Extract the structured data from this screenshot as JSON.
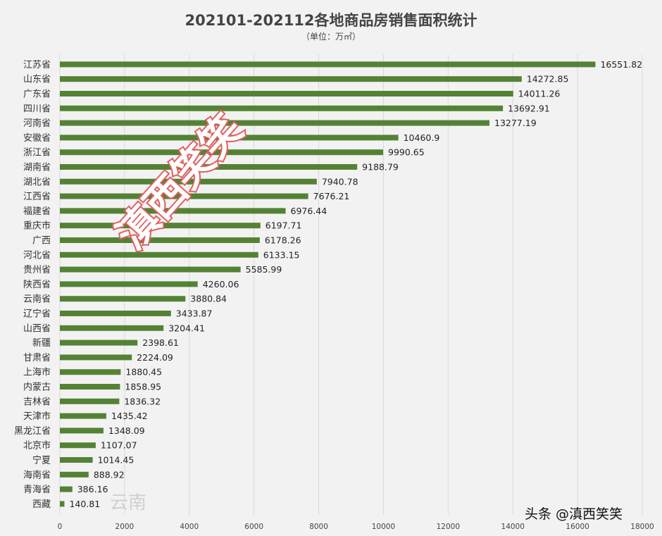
{
  "chart_data": {
    "type": "bar",
    "orientation": "horizontal",
    "title": "202101-202112各地商品房销售面积统计",
    "subtitle": "（单位：万㎡）",
    "categories": [
      "江苏省",
      "山东省",
      "广东省",
      "四川省",
      "河南省",
      "安徽省",
      "浙江省",
      "湖南省",
      "湖北省",
      "江西省",
      "福建省",
      "重庆市",
      "广西",
      "河北省",
      "贵州省",
      "陕西省",
      "云南省",
      "辽宁省",
      "山西省",
      "新疆",
      "甘肃省",
      "上海市",
      "内蒙古",
      "吉林省",
      "天津市",
      "黑龙江省",
      "北京市",
      "宁夏",
      "海南省",
      "青海省",
      "西藏"
    ],
    "values": [
      16551.82,
      14272.85,
      14011.26,
      13692.91,
      13277.19,
      10460.9,
      9990.65,
      9188.79,
      7940.78,
      7676.21,
      6976.44,
      6197.71,
      6178.26,
      6133.15,
      5585.99,
      4260.06,
      3880.84,
      3433.87,
      3204.41,
      2398.61,
      2224.09,
      1880.45,
      1858.95,
      1836.32,
      1435.42,
      1348.09,
      1107.07,
      1014.45,
      888.92,
      386.16,
      140.81
    ],
    "xlim": [
      0,
      18000
    ],
    "xticks": [
      0,
      2000,
      4000,
      6000,
      8000,
      10000,
      12000,
      14000,
      16000,
      18000
    ],
    "grid": true,
    "bar_color": "#548235",
    "legend": "none"
  },
  "watermarks": {
    "stamp": "滇西笑笑",
    "corner": "头条 @滇西笑笑",
    "faint": "云南"
  }
}
